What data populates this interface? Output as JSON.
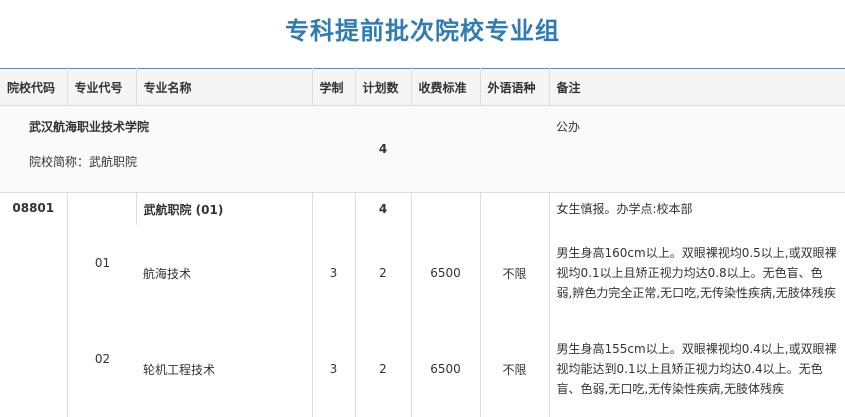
{
  "title": "专科提前批次院校专业组",
  "headers": [
    "院校代码",
    "专业代号",
    "专业名称",
    "学制",
    "计划数",
    "收费标准",
    "外语语种",
    "备注"
  ],
  "school": {
    "name": "武汉航海职业技术学院",
    "short": "院校简称：武航职院",
    "plan": "4",
    "note": "公办"
  },
  "group": {
    "code": "08801",
    "name": "武航职院 (01)",
    "plan": "4",
    "note": "女生慎报。办学点:校本部"
  },
  "majors": [
    {
      "code": "01",
      "name": "航海技术",
      "years": "3",
      "plan": "2",
      "fee": "6500",
      "lang": "不限",
      "note": "男生身高160cm以上。双眼裸视均0.5以上,或双眼裸视均0.1以上且矫正视力均达0.8以上。无色盲、色弱,辨色力完全正常,无口吃,无传染性疾病,无肢体残疾"
    },
    {
      "code": "02",
      "name": "轮机工程技术",
      "years": "3",
      "plan": "2",
      "fee": "6500",
      "lang": "不限",
      "note": "男生身高155cm以上。双眼裸视均0.4以上,或双眼裸视均能达到0.1以上且矫正视力均达0.4以上。无色盲、色弱,无口吃,无传染性疾病,无肢体残疾"
    }
  ]
}
